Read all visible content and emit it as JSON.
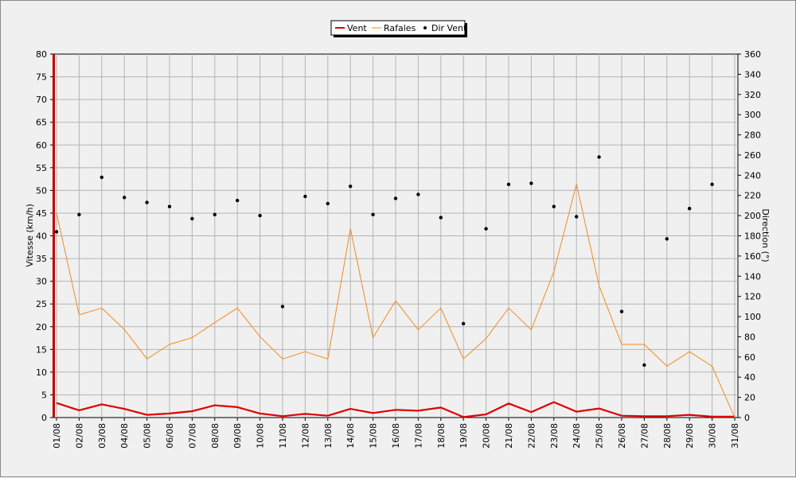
{
  "colors": {
    "vent": "#e00000",
    "rafales": "#f08c1e",
    "dir": "#000000",
    "grid": "#b4b4b4",
    "plot_bg": "#f0f0f0"
  },
  "chart_data": {
    "type": "line",
    "title": "",
    "xlabel": "",
    "ylabel": "Vitesse (km/h)",
    "y2label": "Direction (°)",
    "ylim": [
      0,
      80
    ],
    "y2lim": [
      0,
      360
    ],
    "yticks": [
      "0",
      "5",
      "10",
      "15",
      "20",
      "25",
      "30",
      "35",
      "40",
      "45",
      "50",
      "55",
      "60",
      "65",
      "70",
      "75",
      "80"
    ],
    "y2ticks": [
      "0",
      "20",
      "40",
      "60",
      "80",
      "100",
      "120",
      "140",
      "160",
      "180",
      "200",
      "220",
      "240",
      "260",
      "280",
      "300",
      "320",
      "340",
      "360"
    ],
    "legend": {
      "placement": "top-center",
      "entries": [
        "Vent",
        "Rafales",
        "Dir Vent"
      ]
    },
    "grid": true,
    "categories": [
      "01/08",
      "02/08",
      "03/08",
      "04/08",
      "05/08",
      "06/08",
      "07/08",
      "08/08",
      "09/08",
      "10/08",
      "11/08",
      "12/08",
      "13/08",
      "14/08",
      "15/08",
      "16/08",
      "17/08",
      "18/08",
      "19/08",
      "20/08",
      "21/08",
      "22/08",
      "23/08",
      "24/08",
      "25/08",
      "26/08",
      "27/08",
      "28/08",
      "29/08",
      "30/08",
      "31/08"
    ],
    "series": [
      {
        "name": "Vent",
        "type": "line",
        "axis": "left",
        "values": [
          3.2,
          1.6,
          2.9,
          1.9,
          0.6,
          0.9,
          1.4,
          2.7,
          2.3,
          0.9,
          0.3,
          0.8,
          0.4,
          1.9,
          1.0,
          1.7,
          1.5,
          2.2,
          0.1,
          0.7,
          3.1,
          1.2,
          3.4,
          1.3,
          2.0,
          0.4,
          0.3,
          0.3,
          0.6,
          0.2,
          0.2
        ]
      },
      {
        "name": "Rafales",
        "type": "line",
        "axis": "left",
        "values": [
          45.0,
          22.6,
          24.1,
          19.4,
          12.9,
          16.1,
          17.6,
          20.9,
          24.1,
          17.8,
          12.9,
          14.5,
          12.9,
          41.6,
          17.6,
          25.7,
          19.3,
          24.1,
          12.9,
          17.4,
          24.1,
          19.3,
          32.1,
          51.4,
          29.0,
          16.1,
          16.1,
          11.3,
          14.5,
          11.3,
          0.0
        ]
      },
      {
        "name": "Dir Vent",
        "type": "scatter",
        "axis": "right",
        "values": [
          184,
          201,
          238,
          218,
          213,
          209,
          197,
          201,
          215,
          200,
          110,
          219,
          212,
          229,
          201,
          217,
          221,
          198,
          93,
          187,
          231,
          232,
          209,
          199,
          258,
          105,
          52,
          177,
          207,
          231,
          null
        ]
      }
    ]
  }
}
